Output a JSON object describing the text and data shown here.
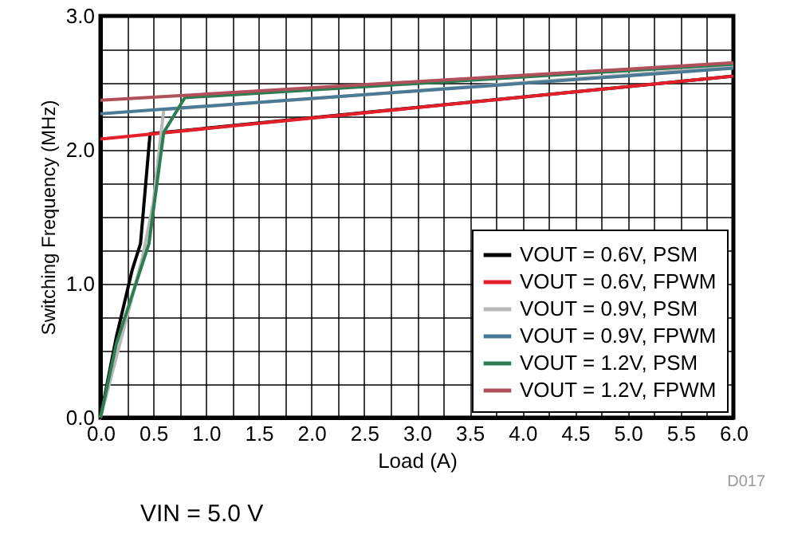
{
  "chart_data": {
    "type": "line",
    "xlabel": "Load (A)",
    "ylabel": "Switching Frequency (MHz)",
    "xlim": [
      0,
      6
    ],
    "ylim": [
      0,
      3
    ],
    "xticks": [
      {
        "value": 0,
        "label": "0.0"
      },
      {
        "value": 0.25,
        "label": null
      },
      {
        "value": 0.5,
        "label": "0.5"
      },
      {
        "value": 0.75,
        "label": null
      },
      {
        "value": 1,
        "label": "1.0"
      },
      {
        "value": 1.25,
        "label": null
      },
      {
        "value": 1.5,
        "label": "1.5"
      },
      {
        "value": 1.75,
        "label": null
      },
      {
        "value": 2,
        "label": "2.0"
      },
      {
        "value": 2.25,
        "label": null
      },
      {
        "value": 2.5,
        "label": "2.5"
      },
      {
        "value": 2.75,
        "label": null
      },
      {
        "value": 3,
        "label": "3.0"
      },
      {
        "value": 3.25,
        "label": null
      },
      {
        "value": 3.5,
        "label": "3.5"
      },
      {
        "value": 3.75,
        "label": null
      },
      {
        "value": 4,
        "label": "4.0"
      },
      {
        "value": 4.25,
        "label": null
      },
      {
        "value": 4.5,
        "label": "4.5"
      },
      {
        "value": 4.75,
        "label": null
      },
      {
        "value": 5,
        "label": "5.0"
      },
      {
        "value": 5.25,
        "label": null
      },
      {
        "value": 5.5,
        "label": "5.5"
      },
      {
        "value": 5.75,
        "label": null
      },
      {
        "value": 6,
        "label": "6.0"
      }
    ],
    "yticks": [
      {
        "value": 0,
        "label": "0.0"
      },
      {
        "value": 0.25,
        "label": null
      },
      {
        "value": 0.5,
        "label": null
      },
      {
        "value": 0.75,
        "label": null
      },
      {
        "value": 1,
        "label": "1.0"
      },
      {
        "value": 1.25,
        "label": null
      },
      {
        "value": 1.5,
        "label": null
      },
      {
        "value": 1.75,
        "label": null
      },
      {
        "value": 2,
        "label": "2.0"
      },
      {
        "value": 2.25,
        "label": null
      },
      {
        "value": 2.5,
        "label": null
      },
      {
        "value": 2.75,
        "label": null
      },
      {
        "value": 3,
        "label": "3.0"
      }
    ],
    "grid": true,
    "legend": "bottom right",
    "marker": "none",
    "line_style": "solid",
    "annotations": [
      "VIN = 5.0 V",
      "D017"
    ],
    "series": [
      {
        "name": "VOUT = 0.6V, PSM",
        "color": "#000000",
        "x": [
          0,
          0.15,
          0.3,
          0.38,
          0.47,
          6
        ],
        "values": [
          0,
          0.6,
          1.1,
          1.3,
          2.12,
          2.55
        ]
      },
      {
        "name": "VOUT = 0.6V, FPWM",
        "color": "#e3202a",
        "x": [
          0,
          6
        ],
        "values": [
          2.08,
          2.55
        ]
      },
      {
        "name": "VOUT = 0.9V, PSM",
        "color": "#b8b8b8",
        "x": [
          0,
          0.2,
          0.4,
          0.5,
          0.6,
          6
        ],
        "values": [
          0,
          0.6,
          1.2,
          1.6,
          2.3,
          2.62
        ]
      },
      {
        "name": "VOUT = 0.9V, FPWM",
        "color": "#4a7a94",
        "x": [
          0,
          6
        ],
        "values": [
          2.27,
          2.61
        ]
      },
      {
        "name": "VOUT = 1.2V, PSM",
        "color": "#2e7d52",
        "x": [
          0,
          0.15,
          0.46,
          0.6,
          0.8,
          6
        ],
        "values": [
          0,
          0.55,
          1.3,
          2.13,
          2.39,
          2.64
        ]
      },
      {
        "name": "VOUT = 1.2V, FPWM",
        "color": "#b0505a",
        "x": [
          0,
          6
        ],
        "values": [
          2.37,
          2.65
        ]
      }
    ]
  }
}
